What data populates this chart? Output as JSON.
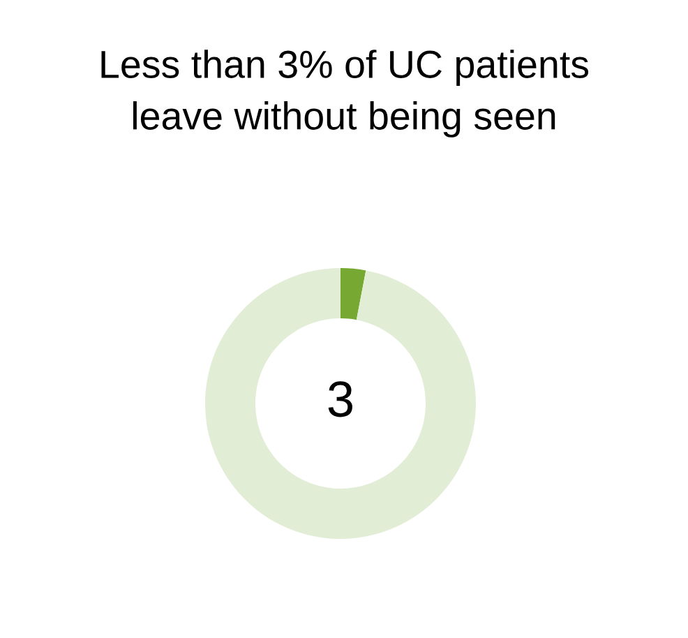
{
  "chart_data": {
    "type": "donut",
    "title": "Less than 3% of UC patients\nleave without being seen",
    "categories": [
      null,
      null
    ],
    "values": [
      3,
      97
    ],
    "colors": [
      "#76a832",
      "#e2edd6"
    ],
    "annotations": [
      "3"
    ]
  }
}
